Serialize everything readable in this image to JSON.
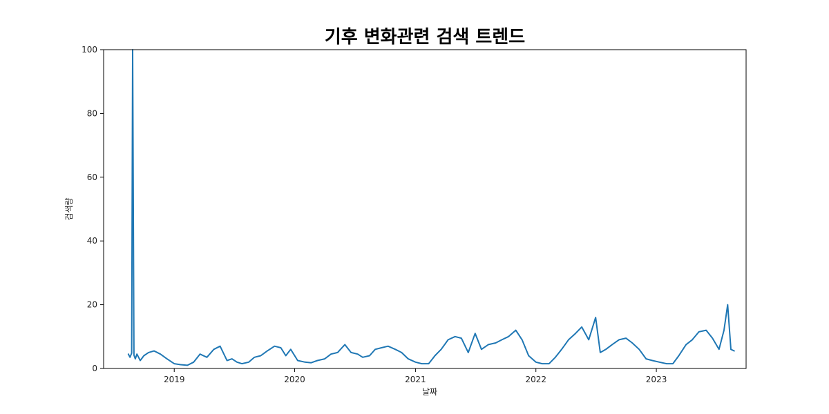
{
  "chart_data": {
    "type": "line",
    "title": "기후 변화관련 검색 트렌드",
    "xlabel": "날짜",
    "ylabel": "검색량",
    "xlim": [
      "2018-06-01",
      "2023-09-30"
    ],
    "ylim": [
      0,
      100
    ],
    "x_ticks": [
      "2019",
      "2020",
      "2021",
      "2022",
      "2023"
    ],
    "y_ticks": [
      "0",
      "20",
      "40",
      "60",
      "80",
      "100"
    ],
    "grid": false,
    "line_color": "#1f77b4",
    "series": [
      {
        "x": [
          "2018-08-15",
          "2018-08-20",
          "2018-08-25",
          "2018-08-28",
          "2018-09-01",
          "2018-09-05",
          "2018-09-10",
          "2018-09-20",
          "2018-10-01",
          "2018-10-15",
          "2018-11-01",
          "2018-11-20",
          "2018-12-10",
          "2019-01-01",
          "2019-01-20",
          "2019-02-10",
          "2019-03-01",
          "2019-03-20",
          "2019-04-10",
          "2019-05-01",
          "2019-05-20",
          "2019-06-10",
          "2019-06-25",
          "2019-07-10",
          "2019-07-25",
          "2019-08-15",
          "2019-09-01",
          "2019-09-20",
          "2019-10-10",
          "2019-11-01",
          "2019-11-20",
          "2019-12-05",
          "2019-12-20",
          "2020-01-10",
          "2020-02-01",
          "2020-02-20",
          "2020-03-10",
          "2020-04-01",
          "2020-04-20",
          "2020-05-10",
          "2020-06-01",
          "2020-06-20",
          "2020-07-10",
          "2020-07-25",
          "2020-08-15",
          "2020-09-01",
          "2020-09-20",
          "2020-10-10",
          "2020-11-01",
          "2020-11-20",
          "2020-12-10",
          "2021-01-01",
          "2021-01-20",
          "2021-02-10",
          "2021-03-01",
          "2021-03-20",
          "2021-04-10",
          "2021-05-01",
          "2021-05-20",
          "2021-06-10",
          "2021-07-01",
          "2021-07-20",
          "2021-08-10",
          "2021-09-01",
          "2021-09-20",
          "2021-10-10",
          "2021-11-01",
          "2021-11-20",
          "2021-12-10",
          "2022-01-01",
          "2022-01-20",
          "2022-02-10",
          "2022-03-01",
          "2022-03-20",
          "2022-04-10",
          "2022-05-01",
          "2022-05-20",
          "2022-06-10",
          "2022-07-01",
          "2022-07-15",
          "2022-08-01",
          "2022-08-20",
          "2022-09-10",
          "2022-10-01",
          "2022-10-20",
          "2022-11-10",
          "2022-12-01",
          "2022-12-20",
          "2023-01-10",
          "2023-02-01",
          "2023-02-20",
          "2023-03-10",
          "2023-04-01",
          "2023-04-20",
          "2023-05-10",
          "2023-06-01",
          "2023-06-20",
          "2023-07-10",
          "2023-07-25",
          "2023-08-05",
          "2023-08-15",
          "2023-08-25"
        ],
        "y": [
          4.5,
          3.5,
          4.8,
          100,
          4.2,
          3.0,
          4.5,
          2.5,
          4.0,
          5.0,
          5.5,
          4.5,
          3.0,
          1.5,
          1.2,
          1.0,
          2.0,
          4.5,
          3.5,
          6.0,
          7.0,
          2.5,
          3.0,
          2.0,
          1.5,
          2.0,
          3.5,
          4.0,
          5.5,
          7.0,
          6.5,
          4.0,
          6.0,
          2.5,
          2.0,
          1.8,
          2.5,
          3.0,
          4.5,
          5.0,
          7.5,
          5.0,
          4.5,
          3.5,
          4.0,
          6.0,
          6.5,
          7.0,
          6.0,
          5.0,
          3.0,
          2.0,
          1.5,
          1.5,
          4.0,
          6.0,
          9.0,
          10.0,
          9.5,
          5.0,
          11.0,
          6.0,
          7.5,
          8.0,
          9.0,
          10.0,
          12.0,
          9.0,
          4.0,
          2.0,
          1.5,
          1.5,
          3.5,
          6.0,
          9.0,
          11.0,
          13.0,
          9.0,
          16.0,
          5.0,
          6.0,
          7.5,
          9.0,
          9.5,
          8.0,
          6.0,
          3.0,
          2.5,
          2.0,
          1.5,
          1.5,
          4.0,
          7.5,
          9.0,
          11.5,
          12.0,
          9.5,
          6.0,
          12.0,
          20.0,
          6.0,
          5.5
        ]
      }
    ]
  }
}
